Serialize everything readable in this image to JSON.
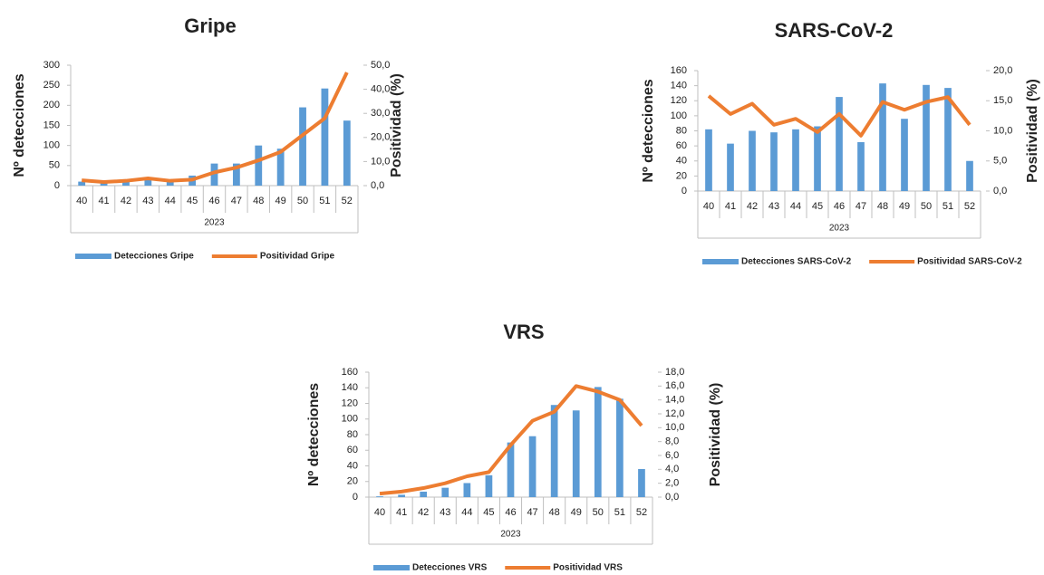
{
  "chart_data": [
    {
      "type": "combo",
      "title": "Gripe",
      "ylabel": "Nº detecciones",
      "y2label": "Positividad  (%)",
      "xlabel": "2023",
      "categories": [
        "40",
        "41",
        "42",
        "43",
        "44",
        "45",
        "46",
        "47",
        "48",
        "49",
        "50",
        "51",
        "52"
      ],
      "ylim": [
        0,
        300
      ],
      "yticks": [
        0,
        50,
        100,
        150,
        200,
        250,
        300
      ],
      "y2lim": [
        0,
        50
      ],
      "y2ticks": [
        {
          "value": 0,
          "label": "0,0"
        },
        {
          "value": 10,
          "label": "10,0"
        },
        {
          "value": 20,
          "label": "20,0"
        },
        {
          "value": 30,
          "label": "30,0"
        },
        {
          "value": 40,
          "label": "40,0"
        },
        {
          "value": 50,
          "label": "50,0"
        }
      ],
      "series": [
        {
          "name": "Detecciones Gripe",
          "type": "bar",
          "color": "#5b9bd5",
          "values": [
            10,
            8,
            10,
            15,
            12,
            25,
            55,
            55,
            100,
            92,
            195,
            242,
            162
          ]
        },
        {
          "name": "Positividad Gripe",
          "type": "line",
          "axis": "y2",
          "color": "#ed7d31",
          "values": [
            2.2,
            1.5,
            2.0,
            3.0,
            2.0,
            2.5,
            5.5,
            7.5,
            10.5,
            14,
            21,
            28,
            47
          ]
        }
      ]
    },
    {
      "type": "combo",
      "title": "SARS-CoV-2",
      "ylabel": "Nº detecciones",
      "y2label": "Positividad  (%)",
      "xlabel": "2023",
      "categories": [
        "40",
        "41",
        "42",
        "43",
        "44",
        "45",
        "46",
        "47",
        "48",
        "49",
        "50",
        "51",
        "52"
      ],
      "ylim": [
        0,
        160
      ],
      "yticks": [
        0,
        20,
        40,
        60,
        80,
        100,
        120,
        140,
        160
      ],
      "y2lim": [
        0,
        20
      ],
      "y2ticks": [
        {
          "value": 0,
          "label": "0,0"
        },
        {
          "value": 5,
          "label": "5,0"
        },
        {
          "value": 10,
          "label": "10,0"
        },
        {
          "value": 15,
          "label": "15,0"
        },
        {
          "value": 20,
          "label": "20,0"
        }
      ],
      "series": [
        {
          "name": "Detecciones SARS-CoV-2",
          "type": "bar",
          "color": "#5b9bd5",
          "values": [
            82,
            63,
            80,
            78,
            82,
            86,
            125,
            65,
            143,
            96,
            141,
            137,
            40
          ]
        },
        {
          "name": "Positividad SARS-CoV-2",
          "type": "line",
          "axis": "y2",
          "color": "#ed7d31",
          "values": [
            15.8,
            12.8,
            14.5,
            11,
            12,
            9.8,
            12.8,
            9.2,
            14.8,
            13.5,
            14.8,
            15.6,
            11
          ]
        }
      ]
    },
    {
      "type": "combo",
      "title": "VRS",
      "ylabel": "Nº detecciones",
      "y2label": "Positividad  (%)",
      "xlabel": "2023",
      "categories": [
        "40",
        "41",
        "42",
        "43",
        "44",
        "45",
        "46",
        "47",
        "48",
        "49",
        "50",
        "51",
        "52"
      ],
      "ylim": [
        0,
        160
      ],
      "yticks": [
        0,
        20,
        40,
        60,
        80,
        100,
        120,
        140,
        160
      ],
      "y2lim": [
        0,
        18
      ],
      "y2ticks": [
        {
          "value": 0,
          "label": "0,0"
        },
        {
          "value": 2,
          "label": "2,0"
        },
        {
          "value": 4,
          "label": "4,0"
        },
        {
          "value": 6,
          "label": "6,0"
        },
        {
          "value": 8,
          "label": "8,0"
        },
        {
          "value": 10,
          "label": "10,0"
        },
        {
          "value": 12,
          "label": "12,0"
        },
        {
          "value": 14,
          "label": "14,0"
        },
        {
          "value": 16,
          "label": "16,0"
        },
        {
          "value": 18,
          "label": "18,0"
        }
      ],
      "series": [
        {
          "name": "Detecciones VRS",
          "type": "bar",
          "color": "#5b9bd5",
          "values": [
            1,
            3,
            7,
            12,
            18,
            28,
            70,
            78,
            118,
            111,
            141,
            126,
            36
          ]
        },
        {
          "name": "Positividad VRS",
          "type": "line",
          "axis": "y2",
          "color": "#ed7d31",
          "values": [
            0.5,
            0.8,
            1.3,
            2,
            3,
            3.6,
            7.5,
            11,
            12.3,
            16,
            15.2,
            14,
            10.3
          ]
        }
      ]
    }
  ]
}
